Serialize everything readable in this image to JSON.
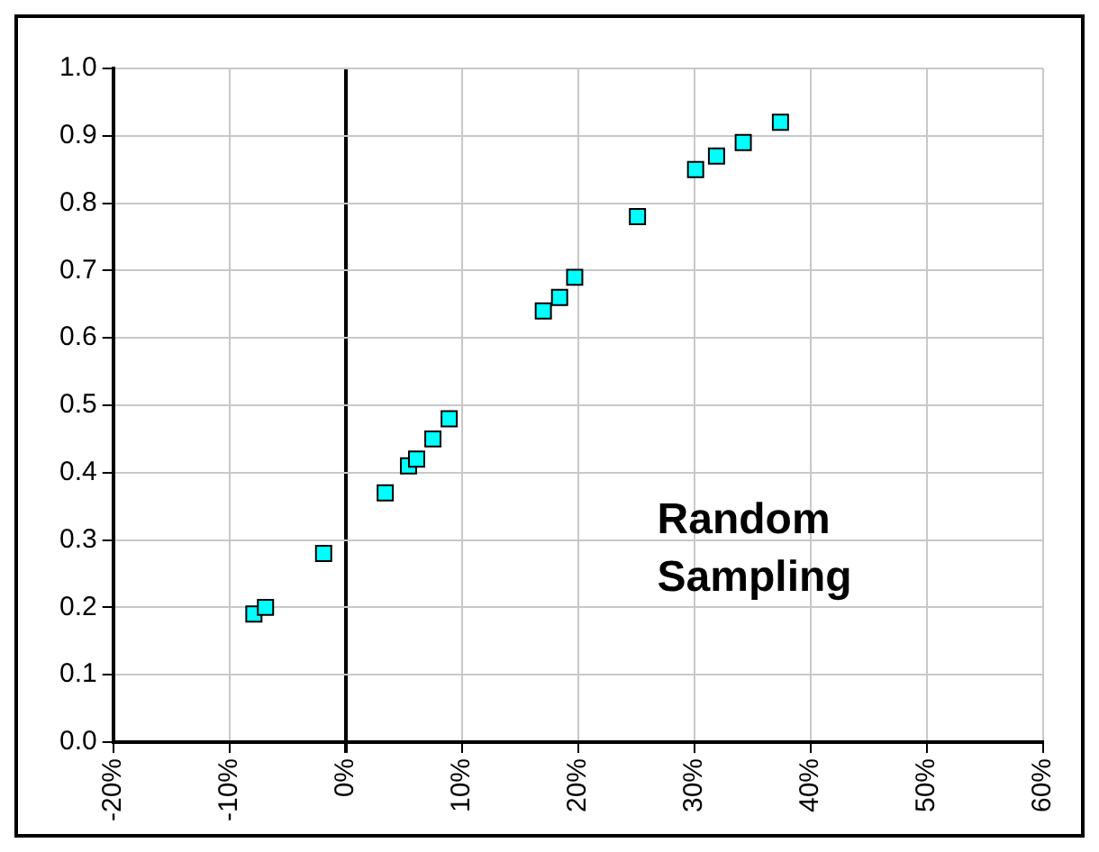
{
  "chart_data": {
    "type": "scatter",
    "annotations": [
      "Random Sampling"
    ],
    "x": [
      -7.9,
      -6.9,
      -1.9,
      3.4,
      5.4,
      6.1,
      7.5,
      8.9,
      17.0,
      18.4,
      19.7,
      25.1,
      30.1,
      31.9,
      34.2,
      37.4
    ],
    "series": [
      {
        "color": "#00ffff",
        "values": [
          0.19,
          0.2,
          0.28,
          0.37,
          0.41,
          0.42,
          0.45,
          0.48,
          0.64,
          0.66,
          0.69,
          0.78,
          0.85,
          0.87,
          0.89,
          0.92
        ]
      }
    ],
    "xlim": [
      -20,
      60
    ],
    "xticks": [
      {
        "value": -20,
        "label": "-20%"
      },
      {
        "value": -10,
        "label": "-10%"
      },
      {
        "value": 0,
        "label": "0%"
      },
      {
        "value": 10,
        "label": "10%"
      },
      {
        "value": 20,
        "label": "20%"
      },
      {
        "value": 30,
        "label": "30%"
      },
      {
        "value": 40,
        "label": "40%"
      },
      {
        "value": 50,
        "label": "50%"
      },
      {
        "value": 60,
        "label": "60%"
      }
    ],
    "ylim": [
      0,
      1
    ],
    "yticks": [
      {
        "value": 0,
        "label": "0.0"
      },
      {
        "value": 0.1,
        "label": "0.1"
      },
      {
        "value": 0.2,
        "label": "0.2"
      },
      {
        "value": 0.3,
        "label": "0.3"
      },
      {
        "value": 0.4,
        "label": "0.4"
      },
      {
        "value": 0.5,
        "label": "0.5"
      },
      {
        "value": 0.6,
        "label": "0.6"
      },
      {
        "value": 0.7,
        "label": "0.7"
      },
      {
        "value": 0.8,
        "label": "0.8"
      },
      {
        "value": 0.9,
        "label": "0.9"
      },
      {
        "value": 1,
        "label": "1.0"
      }
    ],
    "grid": true,
    "legend": false,
    "marker": "square"
  }
}
